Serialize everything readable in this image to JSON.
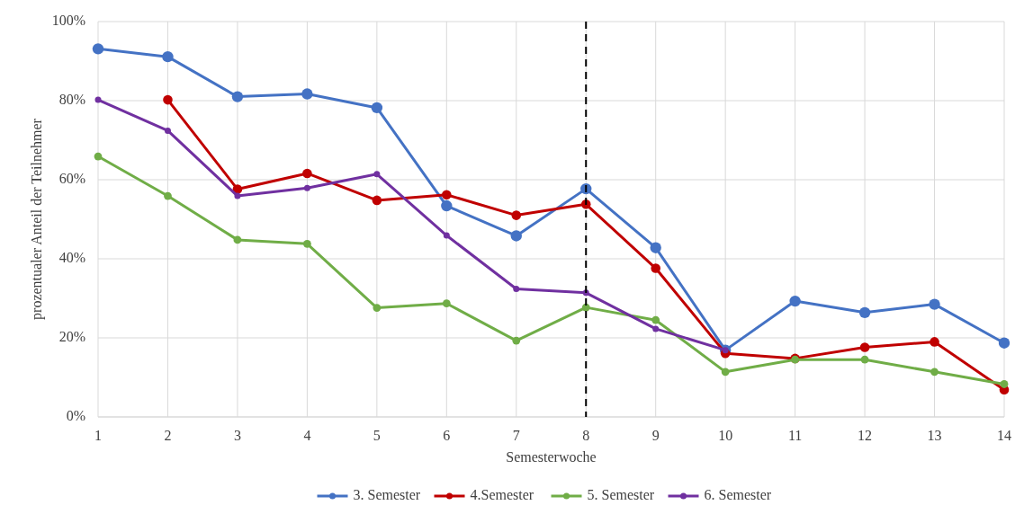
{
  "chart_data": {
    "type": "line",
    "xlabel": "Semesterwoche",
    "ylabel": "prozentualer Anteil der Teilnehmer",
    "x": [
      1,
      2,
      3,
      4,
      5,
      6,
      7,
      8,
      9,
      10,
      11,
      12,
      13,
      14
    ],
    "xlim": [
      1,
      14
    ],
    "xticks": [
      1,
      2,
      3,
      4,
      5,
      6,
      7,
      8,
      9,
      10,
      11,
      12,
      13,
      14
    ],
    "ylim": [
      0,
      100
    ],
    "yticks": [
      {
        "value": 0,
        "label": "0%"
      },
      {
        "value": 20,
        "label": "20%"
      },
      {
        "value": 40,
        "label": "40%"
      },
      {
        "value": 60,
        "label": "60%"
      },
      {
        "value": 80,
        "label": "80%"
      },
      {
        "value": 100,
        "label": "100%"
      }
    ],
    "grid": true,
    "legend": "bottom",
    "marker": "circle",
    "line_style": "solid",
    "ref_lines": [
      {
        "axis": "x",
        "value": 8,
        "color": "#000000",
        "line_style": "dashed"
      }
    ],
    "series": [
      {
        "name": "3. Semester",
        "color": "#4472c4",
        "values": [
          93.1,
          91.1,
          81,
          81.7,
          78.2,
          53.4,
          45.8,
          57.7,
          42.8,
          16.9,
          29.3,
          26.4,
          28.5,
          18.7
        ]
      },
      {
        "name": "4.Semester",
        "color": "#c00000",
        "values": [
          null,
          80.2,
          57.6,
          61.6,
          54.8,
          56.2,
          51,
          53.8,
          37.6,
          16.1,
          14.8,
          17.6,
          19,
          6.9
        ]
      },
      {
        "name": "5. Semester",
        "color": "#70ad47",
        "values": [
          65.9,
          55.9,
          44.8,
          43.8,
          27.6,
          28.7,
          19.3,
          27.7,
          24.5,
          11.4,
          14.5,
          14.5,
          11.4,
          8.3
        ]
      },
      {
        "name": "6. Semester",
        "color": "#7030a0",
        "values": [
          80.2,
          72.4,
          55.9,
          57.9,
          61.4,
          45.9,
          32.4,
          31.4,
          22.3,
          16.9,
          null,
          null,
          null,
          null
        ]
      }
    ]
  }
}
